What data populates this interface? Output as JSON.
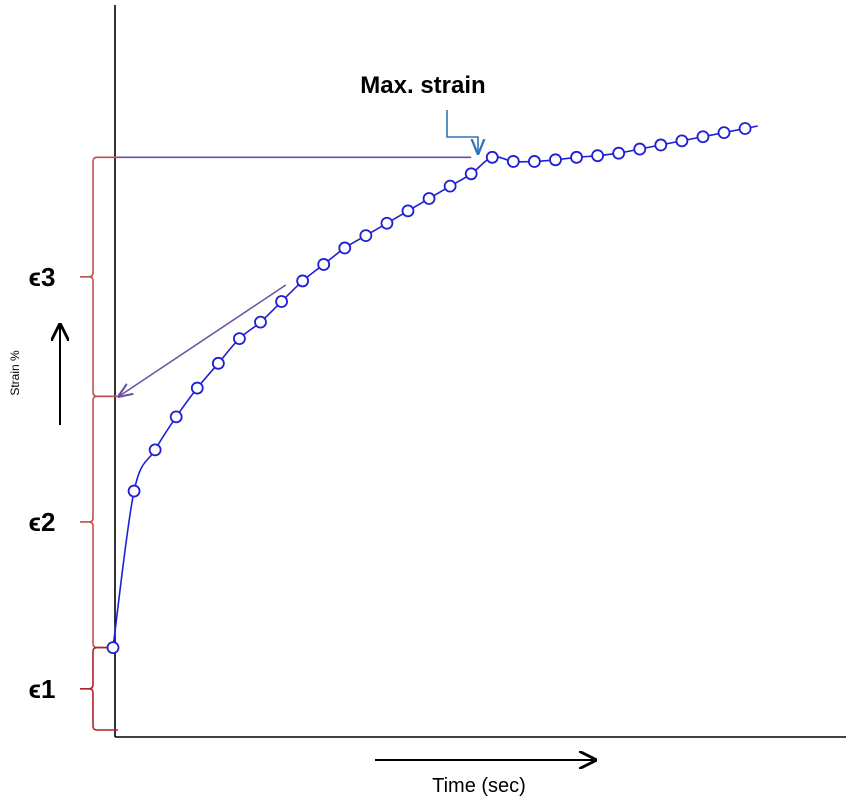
{
  "chart_data": {
    "type": "line",
    "title": "",
    "xlabel": "Time (sec)",
    "ylabel": "Strain %",
    "grid": false,
    "legend": "none",
    "series": [
      {
        "color": "#1f1fd6",
        "marker": "circle-open",
        "x": [
          0,
          1,
          2,
          3,
          4,
          5,
          6,
          7,
          8,
          9,
          10,
          11,
          12,
          13,
          14,
          15,
          16,
          17,
          18,
          19,
          20,
          21,
          22,
          23,
          24,
          25,
          26,
          27,
          28,
          29,
          30
        ],
        "y": [
          1.0,
          2.9,
          3.4,
          3.8,
          4.15,
          4.45,
          4.75,
          4.95,
          5.2,
          5.45,
          5.65,
          5.85,
          6.0,
          6.15,
          6.3,
          6.45,
          6.6,
          6.75,
          6.95,
          6.9,
          6.9,
          6.92,
          6.95,
          6.97,
          7.0,
          7.05,
          7.1,
          7.15,
          7.2,
          7.25,
          7.3
        ]
      }
    ],
    "annotations": [
      {
        "text": "Max. strain",
        "target_x": 17,
        "target_y": 6.95
      },
      {
        "text": "ϵ3",
        "range": [
          4.05,
          6.95
        ]
      },
      {
        "text": "ϵ2",
        "range": [
          1.0,
          4.05
        ]
      },
      {
        "text": "ϵ1",
        "range": [
          0.0,
          1.0
        ]
      }
    ]
  },
  "colors": {
    "axis": "#000000",
    "curve": "#1f1fd6",
    "brace": "#c0504d",
    "guide": "#6a4fa8",
    "callout": "#2e75b6"
  }
}
